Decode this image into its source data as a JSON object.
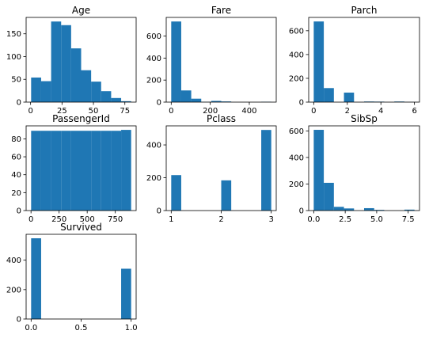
{
  "chart_data": [
    {
      "type": "bar",
      "title": "Age",
      "bin_edges": [
        0.42,
        8.378,
        16.336,
        24.294,
        32.252,
        40.21,
        48.168,
        56.126,
        64.084,
        72.042,
        80.0
      ],
      "values": [
        54,
        46,
        177,
        169,
        118,
        70,
        45,
        24,
        9,
        2
      ],
      "xlim": [
        -3.559,
        83.979
      ],
      "ylim": [
        0,
        186
      ],
      "xticks": [
        0,
        25,
        50,
        75
      ],
      "yticks": [
        0,
        50,
        100,
        150
      ],
      "xlabel": "",
      "ylabel": "",
      "grid": false
    },
    {
      "type": "bar",
      "title": "Fare",
      "bin_edges": [
        0,
        51.233,
        102.466,
        153.699,
        204.932,
        256.165,
        307.398,
        358.63,
        409.863,
        461.096,
        512.329
      ],
      "values": [
        732,
        106,
        31,
        2,
        11,
        6,
        0,
        0,
        0,
        3
      ],
      "xlim": [
        -25.616,
        537.945
      ],
      "ylim": [
        0,
        769
      ],
      "xticks": [
        0,
        200,
        400
      ],
      "yticks": [
        0,
        200,
        400,
        600
      ],
      "xlabel": "",
      "ylabel": "",
      "grid": false
    },
    {
      "type": "bar",
      "title": "Parch",
      "bin_edges": [
        0,
        0.6,
        1.2,
        1.8,
        2.4,
        3.0,
        3.6,
        4.2,
        4.8,
        5.4,
        6.0
      ],
      "values": [
        678,
        118,
        0,
        80,
        0,
        5,
        4,
        0,
        5,
        1
      ],
      "xlim": [
        -0.3,
        6.3
      ],
      "ylim": [
        0,
        712
      ],
      "xticks": [
        0,
        2,
        4,
        6
      ],
      "yticks": [
        0,
        200,
        400,
        600
      ],
      "xlabel": "",
      "ylabel": "",
      "grid": false
    },
    {
      "type": "bar",
      "title": "PassengerId",
      "bin_edges": [
        1,
        90,
        179,
        268,
        357,
        446,
        535,
        624,
        713,
        802,
        891
      ],
      "values": [
        89,
        89,
        89,
        89,
        89,
        89,
        89,
        89,
        89,
        90
      ],
      "xlim": [
        -43.5,
        935.5
      ],
      "ylim": [
        0,
        94.5
      ],
      "xticks": [
        0,
        250,
        500,
        750
      ],
      "yticks": [
        0,
        20,
        40,
        60,
        80
      ],
      "xlabel": "",
      "ylabel": "",
      "grid": false
    },
    {
      "type": "bar",
      "title": "Pclass",
      "bin_edges": [
        1,
        1.2,
        1.4,
        1.6,
        1.8,
        2.0,
        2.2,
        2.4,
        2.6,
        2.8,
        3.0
      ],
      "values": [
        216,
        0,
        0,
        0,
        0,
        184,
        0,
        0,
        0,
        491
      ],
      "xlim": [
        0.9,
        3.1
      ],
      "ylim": [
        0,
        516
      ],
      "xticks": [
        1,
        2,
        3
      ],
      "yticks": [
        0,
        200,
        400
      ],
      "xlabel": "",
      "ylabel": "",
      "grid": false
    },
    {
      "type": "bar",
      "title": "SibSp",
      "bin_edges": [
        0,
        0.8,
        1.6,
        2.4,
        3.2,
        4.0,
        4.8,
        5.6,
        6.4,
        7.2,
        8.0
      ],
      "values": [
        608,
        209,
        28,
        16,
        0,
        18,
        5,
        0,
        0,
        7
      ],
      "xlim": [
        -0.4,
        8.4
      ],
      "ylim": [
        0,
        638
      ],
      "xticks": [
        0.0,
        2.5,
        5.0,
        7.5
      ],
      "xtick_labels": [
        "0.0",
        "2.5",
        "5.0",
        "7.5"
      ],
      "yticks": [
        0,
        200,
        400,
        600
      ],
      "xlabel": "",
      "ylabel": "",
      "grid": false
    },
    {
      "type": "bar",
      "title": "Survived",
      "bin_edges": [
        0,
        0.1,
        0.2,
        0.3,
        0.4,
        0.5,
        0.6,
        0.7,
        0.8,
        0.9,
        1.0
      ],
      "values": [
        549,
        0,
        0,
        0,
        0,
        0,
        0,
        0,
        0,
        342
      ],
      "xlim": [
        -0.05,
        1.05
      ],
      "ylim": [
        0,
        576
      ],
      "xticks": [
        0.0,
        0.5,
        1.0
      ],
      "xtick_labels": [
        "0.0",
        "0.5",
        "1.0"
      ],
      "yticks": [
        0,
        200,
        400
      ],
      "xlabel": "",
      "ylabel": "",
      "grid": false
    }
  ],
  "colors": {
    "bar": "#1f77b4",
    "axes": "#000000",
    "background": "#ffffff"
  }
}
